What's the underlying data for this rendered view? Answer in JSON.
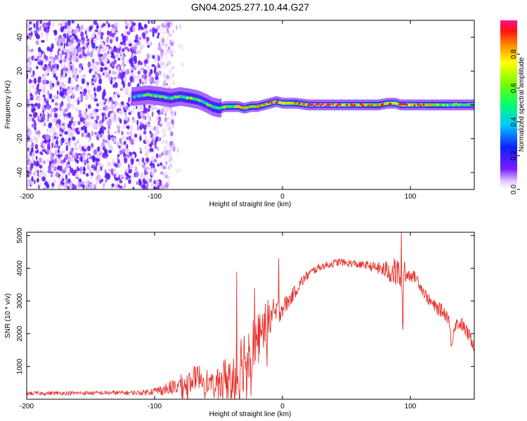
{
  "title": "GN04.2025.277.10.44.G27",
  "chart_data": [
    {
      "type": "heatmap",
      "title": "GN04.2025.277.10.44.G27",
      "xlabel": "Height of straight line (km)",
      "ylabel": "Frequency (Hz)",
      "xlim": [
        -200,
        150
      ],
      "ylim": [
        -50,
        50
      ],
      "xticks": [
        -200,
        -100,
        0,
        100
      ],
      "yticks": [
        -40,
        -20,
        0,
        20,
        40
      ],
      "colorbar": {
        "label": "Normalized spectral amplitude",
        "range": [
          0,
          1
        ],
        "ticks": [
          0,
          0.2,
          0.4,
          0.6,
          0.8
        ],
        "tick_labels": [
          "0.0",
          "0.2",
          "0.4",
          "0.6",
          "0.8"
        ]
      },
      "noise_region": {
        "x": [
          -200,
          -85
        ],
        "y": [
          -50,
          50
        ]
      },
      "ridge": {
        "x": [
          -116,
          -105,
          -95,
          -88,
          -80,
          -72,
          -66,
          -60,
          -55,
          -50,
          -45,
          -40,
          -35,
          -30,
          -25,
          -20,
          -15,
          -10,
          -5,
          0,
          10,
          20,
          40,
          60,
          75,
          82,
          88,
          92,
          98,
          110,
          130,
          150
        ],
        "freq": [
          5,
          6,
          5,
          4,
          5,
          4,
          3,
          1,
          -1,
          -2,
          -1,
          -1,
          -1,
          -2,
          -1,
          -1,
          0,
          1,
          2,
          1,
          1,
          0,
          0,
          0,
          0,
          1,
          1,
          0,
          0,
          0,
          0,
          0
        ],
        "amplitude": [
          0.45,
          0.55,
          0.6,
          0.55,
          0.6,
          0.7,
          0.6,
          0.55,
          0.6,
          0.65,
          0.75,
          0.7,
          0.75,
          0.8,
          0.75,
          0.8,
          0.85,
          0.9,
          0.95,
          0.95,
          0.85,
          0.95,
          0.95,
          0.9,
          0.85,
          0.9,
          0.95,
          0.9,
          0.95,
          0.9,
          0.6,
          0.5
        ]
      }
    },
    {
      "type": "line",
      "xlabel": "Height of straight line (km)",
      "ylabel": "SNR (10 * v/v)",
      "xlim": [
        -200,
        150
      ],
      "ylim": [
        0,
        5100
      ],
      "xticks": [
        -200,
        -100,
        0,
        100
      ],
      "yticks": [
        1000,
        2000,
        3000,
        4000,
        5000
      ],
      "color": "#e8322c",
      "envelope": {
        "x": [
          -200,
          -150,
          -110,
          -95,
          -85,
          -80,
          -75,
          -70,
          -65,
          -60,
          -55,
          -50,
          -45,
          -40,
          -35,
          -30,
          -25,
          -20,
          -15,
          -10,
          -5,
          0,
          5,
          10,
          15,
          20,
          25,
          30,
          35,
          40,
          45,
          50,
          55,
          60,
          65,
          70,
          75,
          80,
          85,
          90,
          92,
          94,
          95,
          96,
          100,
          105,
          110,
          115,
          120,
          125,
          130,
          132,
          135,
          140,
          145,
          150
        ],
        "snr": [
          180,
          190,
          200,
          280,
          380,
          450,
          500,
          650,
          700,
          580,
          450,
          520,
          650,
          700,
          750,
          1300,
          1550,
          1850,
          2200,
          2500,
          2600,
          2800,
          3000,
          3300,
          3600,
          3800,
          3950,
          4050,
          4100,
          4150,
          4200,
          4150,
          4150,
          4100,
          4100,
          4050,
          4000,
          3950,
          3900,
          3850,
          3850,
          2500,
          4300,
          3800,
          3800,
          3700,
          3300,
          3000,
          2800,
          2700,
          2500,
          1700,
          2300,
          2300,
          2000,
          1650
        ],
        "noise": [
          60,
          60,
          70,
          150,
          250,
          300,
          330,
          360,
          380,
          420,
          300,
          420,
          650,
          1000,
          1300,
          1000,
          900,
          800,
          700,
          600,
          450,
          300,
          250,
          200,
          180,
          150,
          130,
          120,
          120,
          120,
          120,
          120,
          120,
          120,
          130,
          140,
          200,
          280,
          400,
          500,
          500,
          400,
          700,
          300,
          180,
          180,
          180,
          180,
          200,
          220,
          220,
          200,
          200,
          220,
          220,
          220
        ]
      },
      "spikes": [
        {
          "x": -36,
          "snr": 3900
        },
        {
          "x": -22,
          "snr": 3400
        },
        {
          "x": -3,
          "snr": 4300
        },
        {
          "x": 93,
          "snr": 5100
        },
        {
          "x": 94.5,
          "snr": 2300
        }
      ]
    }
  ]
}
